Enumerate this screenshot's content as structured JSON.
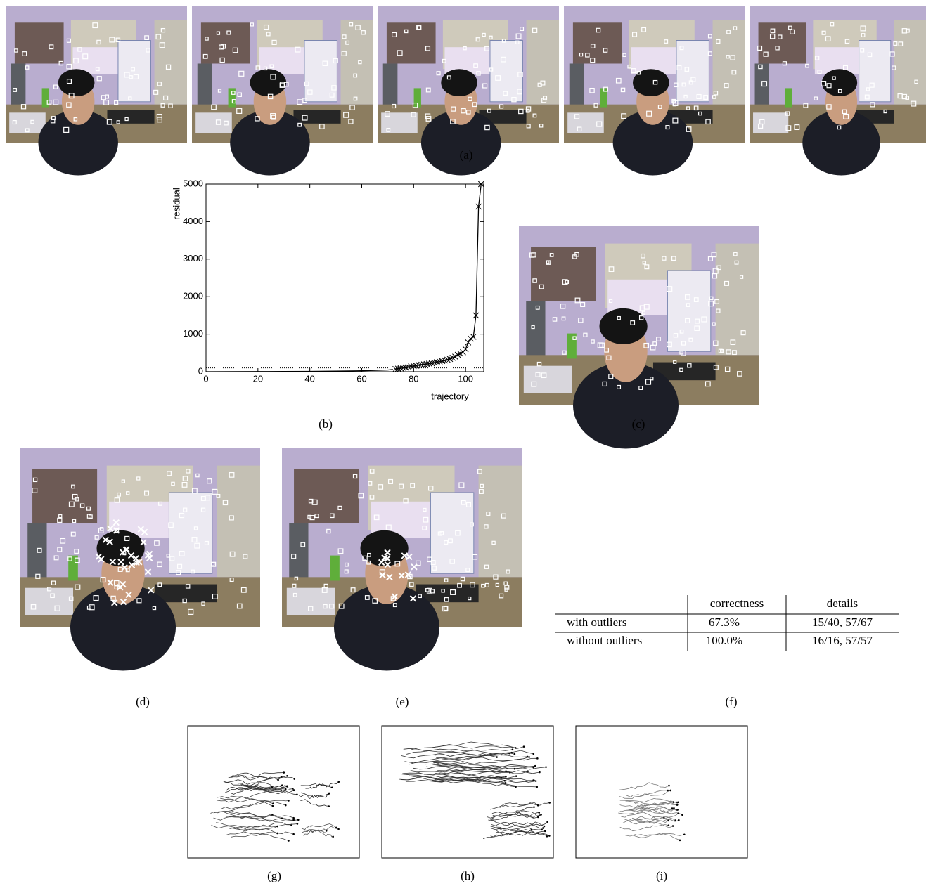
{
  "captions": [
    "(a)",
    "(b)",
    "(c)",
    "(d)",
    "(e)",
    "(f)",
    "(g)",
    "(h)",
    "(i)"
  ],
  "chart_data": {
    "type": "line",
    "xlabel": "trajectory",
    "ylabel": "residual",
    "xlim": [
      0,
      107
    ],
    "ylim": [
      0,
      5000
    ],
    "xticks": [
      0,
      20,
      40,
      60,
      80,
      100
    ],
    "yticks": [
      0,
      1000,
      2000,
      3000,
      4000,
      5000
    ],
    "threshold": 100,
    "color": "#000000",
    "series": [
      {
        "x": [
          0,
          10,
          20,
          30,
          40,
          50,
          60,
          70,
          72
        ],
        "values": [
          0,
          2,
          4,
          6,
          10,
          15,
          25,
          45,
          60
        ]
      },
      {
        "marker": "x",
        "x": [
          73,
          74,
          75,
          76,
          77,
          78,
          79,
          80,
          81,
          82,
          83,
          84,
          85,
          86,
          87,
          88,
          89,
          90,
          91,
          92,
          93,
          94,
          95,
          96,
          97,
          98,
          99,
          100,
          101,
          102,
          103,
          104,
          105,
          106
        ],
        "values": [
          70,
          80,
          90,
          100,
          110,
          125,
          140,
          150,
          160,
          175,
          185,
          195,
          205,
          215,
          225,
          240,
          255,
          270,
          285,
          300,
          320,
          340,
          370,
          400,
          450,
          480,
          520,
          600,
          780,
          880,
          930,
          1500,
          4400,
          5000
        ]
      }
    ]
  },
  "table": {
    "header": [
      "correctness",
      "details"
    ],
    "rows": [
      [
        "with outliers",
        "67.3%",
        "15/40, 57/67"
      ],
      [
        "without outliers",
        "100.0%",
        "16/16, 57/57"
      ]
    ]
  }
}
